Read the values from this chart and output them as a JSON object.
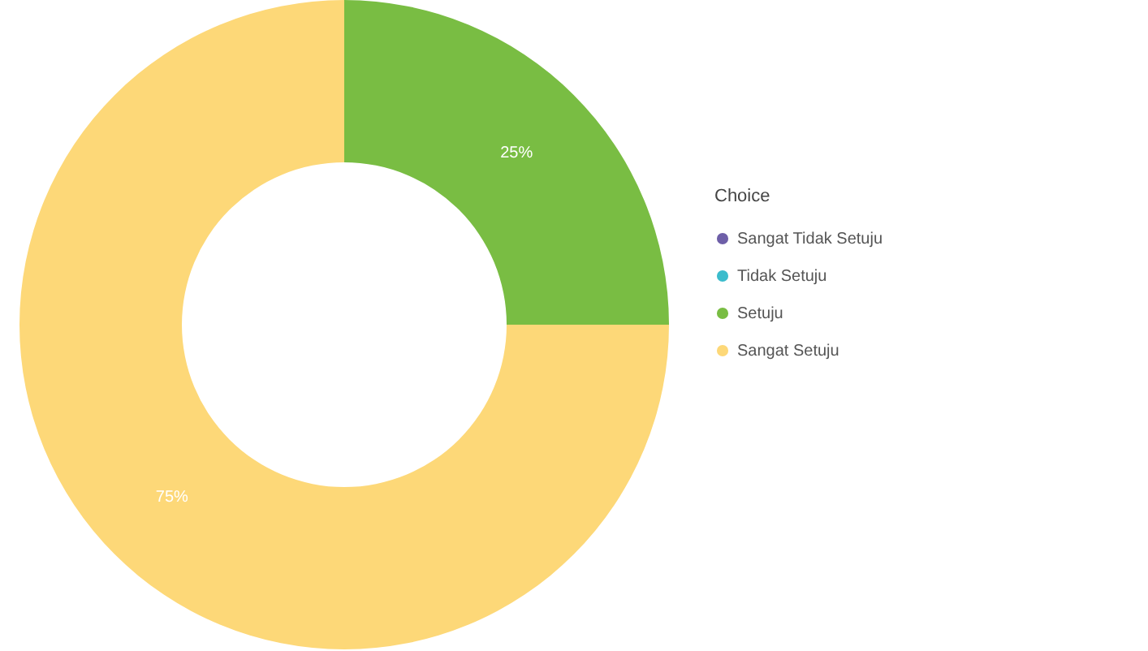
{
  "chart_data": {
    "type": "donut",
    "legend_title": "Choice",
    "categories": [
      "Sangat Tidak Setuju",
      "Tidak Setuju",
      "Setuju",
      "Sangat Setuju"
    ],
    "values": [
      0,
      0,
      25,
      75
    ],
    "colors": [
      "#6e5fa8",
      "#3bbccc",
      "#79bd43",
      "#fdd878"
    ],
    "value_labels": [
      null,
      null,
      "25%",
      "75%"
    ],
    "legend": "right"
  }
}
